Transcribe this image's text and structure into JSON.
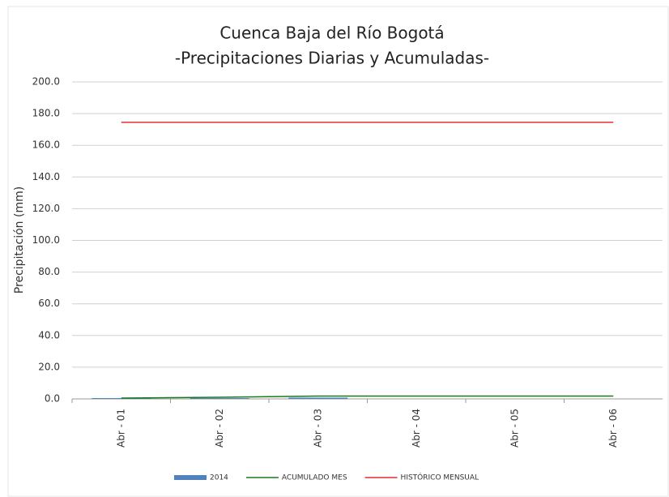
{
  "chart_data": {
    "type": "bar",
    "title": "Cuenca Baja del Río Bogotá",
    "subtitle": "-Precipitaciones Diarias y Acumuladas-",
    "y_label": "Precipitación (mm)",
    "categories": [
      "Abr - 01",
      "Abr - 02",
      "Abr - 03",
      "Abr - 04",
      "Abr - 05",
      "Abr - 06"
    ],
    "series": [
      {
        "name": "2014",
        "type": "bar",
        "color": "#4f81bd",
        "values": [
          0.5,
          0.5,
          0.8,
          0,
          0,
          0
        ]
      },
      {
        "name": "ACUMULADO MES",
        "type": "line",
        "color": "#1a7a1a",
        "values": [
          0.5,
          1.0,
          1.8,
          1.8,
          1.8,
          1.8
        ]
      },
      {
        "name": "HISTÓRICO MENSUAL",
        "type": "line",
        "color": "#e03030",
        "values": [
          174.5,
          174.5,
          174.5,
          174.5,
          174.5,
          174.5
        ]
      }
    ],
    "ylim": [
      0,
      200
    ],
    "yticks": [
      {
        "value": 0,
        "label": "0.0"
      },
      {
        "value": 20,
        "label": "20.0"
      },
      {
        "value": 40,
        "label": "40.0"
      },
      {
        "value": 60,
        "label": "60.0"
      },
      {
        "value": 80,
        "label": "80.0"
      },
      {
        "value": 100,
        "label": "100.0"
      },
      {
        "value": 120,
        "label": "120.0"
      },
      {
        "value": 140,
        "label": "140.0"
      },
      {
        "value": 160,
        "label": "160.0"
      },
      {
        "value": 180,
        "label": "180.0"
      },
      {
        "value": 200,
        "label": "200.0"
      }
    ],
    "grid": true
  }
}
